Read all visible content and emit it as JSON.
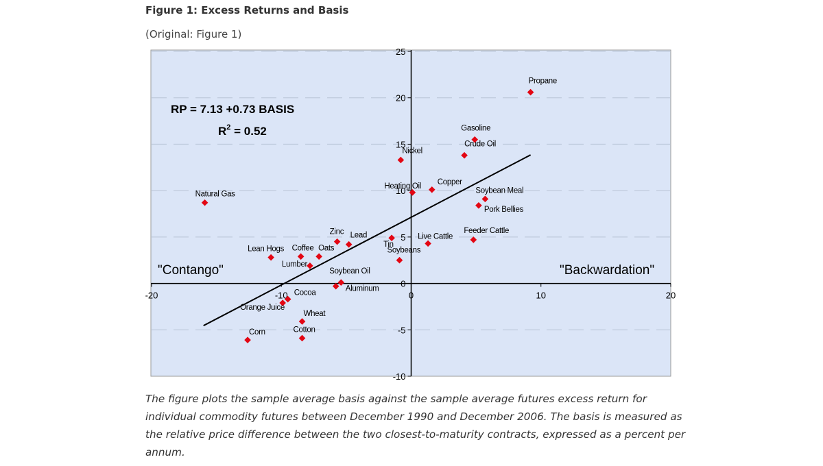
{
  "figure": {
    "title": "Figure 1: Excess Returns and Basis",
    "subtitle": "(Original: Figure 1)",
    "caption": "The figure plots the sample average basis against the sample average futures excess return for individual commodity futures between December 1990 and December 2006. The basis is measured as the relative price difference between the two closest-to-maturity contracts, expressed as a percent per annum."
  },
  "colors": {
    "plot_background": "#dbe5f7",
    "point": "#e30613",
    "line": "#000000",
    "grid": "#b8c4d6"
  },
  "chart_data": {
    "type": "scatter",
    "xlim": [
      -20,
      20
    ],
    "ylim": [
      -10,
      25
    ],
    "x_ticks": [
      "-20",
      "-10",
      "0",
      "10",
      "20"
    ],
    "y_ticks": [
      "-10",
      "-5",
      "0",
      "5",
      "10",
      "15",
      "20",
      "25"
    ],
    "grid": "horizontal dashed",
    "equation": "RP =  7.13 +0.73 BASIS",
    "r2_label": "R",
    "r2_sup": "2",
    "r2_value": " = 0.52",
    "regression": {
      "intercept": 7.13,
      "slope": 0.73,
      "x_range": [
        -16,
        9.2
      ]
    },
    "region_labels": {
      "left": "\"Contango\"",
      "right": "\"Backwardation\""
    },
    "points": [
      {
        "name": "Propane",
        "x": 9.2,
        "y": 20.6
      },
      {
        "name": "Gasoline",
        "x": 4.9,
        "y": 15.5
      },
      {
        "name": "Crude Oil",
        "x": 4.1,
        "y": 13.8
      },
      {
        "name": "Nickel",
        "x": -0.8,
        "y": 13.3
      },
      {
        "name": "Heating Oil",
        "x": 0.1,
        "y": 9.8
      },
      {
        "name": "Copper",
        "x": 1.6,
        "y": 10.1
      },
      {
        "name": "Soybean Meal",
        "x": 5.7,
        "y": 9.1
      },
      {
        "name": "Pork Bellies",
        "x": 5.2,
        "y": 8.4
      },
      {
        "name": "Natural Gas",
        "x": -15.9,
        "y": 8.7
      },
      {
        "name": "Feeder Cattle",
        "x": 4.8,
        "y": 4.7
      },
      {
        "name": "Live Cattle",
        "x": 1.3,
        "y": 4.3
      },
      {
        "name": "Zinc",
        "x": -5.7,
        "y": 4.5
      },
      {
        "name": "Lead",
        "x": -4.8,
        "y": 4.2
      },
      {
        "name": "Tin",
        "x": -1.5,
        "y": 4.9
      },
      {
        "name": "Soybeans",
        "x": -0.9,
        "y": 2.5
      },
      {
        "name": "Lean Hogs",
        "x": -10.8,
        "y": 2.8
      },
      {
        "name": "Coffee",
        "x": -8.5,
        "y": 2.9
      },
      {
        "name": "Oats",
        "x": -7.1,
        "y": 2.9
      },
      {
        "name": "Lumber",
        "x": -7.8,
        "y": 1.9
      },
      {
        "name": "Soybean Oil",
        "x": -5.4,
        "y": 0.1
      },
      {
        "name": "Aluminum",
        "x": -5.8,
        "y": -0.3
      },
      {
        "name": "Cocoa",
        "x": -9.5,
        "y": -1.7
      },
      {
        "name": "Orange Juice",
        "x": -9.9,
        "y": -2.1
      },
      {
        "name": "Wheat",
        "x": -8.4,
        "y": -4.1
      },
      {
        "name": "Cotton",
        "x": -8.4,
        "y": -5.9
      },
      {
        "name": "Corn",
        "x": -12.6,
        "y": -6.1
      }
    ]
  }
}
